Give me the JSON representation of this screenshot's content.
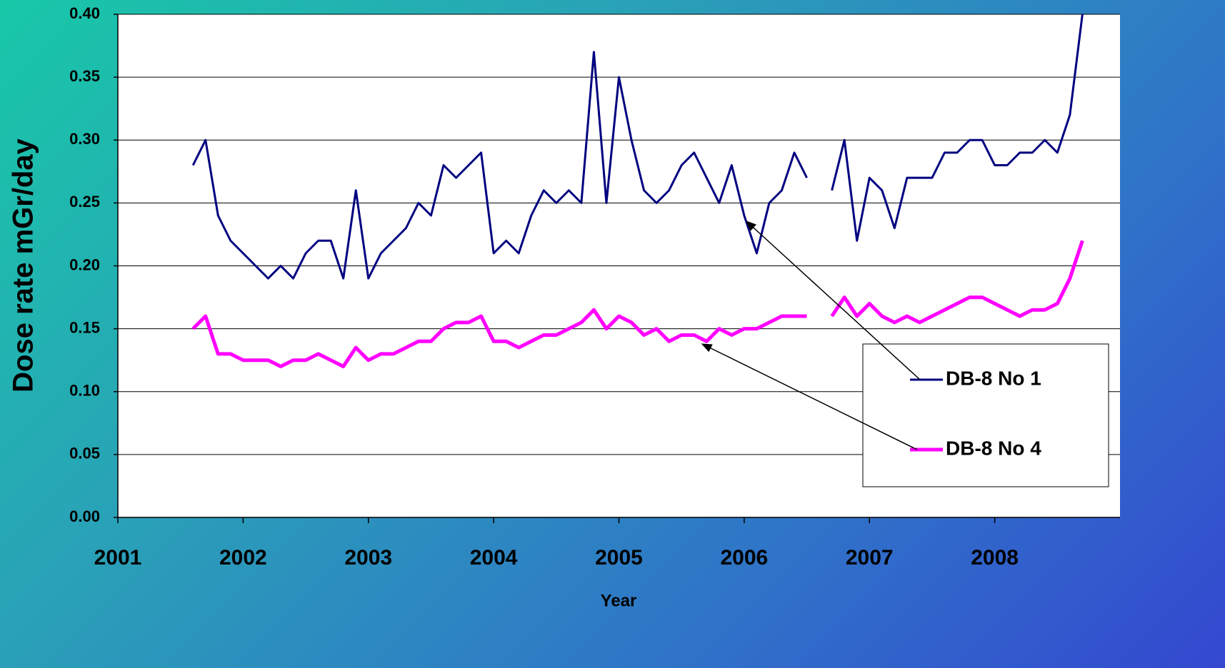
{
  "chart_data": {
    "type": "line",
    "y_label": "Dose rate mGr/day",
    "x_label": "Year",
    "x": [
      2001.6,
      2001.7,
      2001.8,
      2001.9,
      2002.0,
      2002.1,
      2002.2,
      2002.3,
      2002.4,
      2002.5,
      2002.6,
      2002.7,
      2002.8,
      2002.9,
      2003.0,
      2003.1,
      2003.2,
      2003.3,
      2003.4,
      2003.5,
      2003.6,
      2003.7,
      2003.8,
      2003.9,
      2004.0,
      2004.1,
      2004.2,
      2004.3,
      2004.4,
      2004.5,
      2004.6,
      2004.7,
      2004.8,
      2004.9,
      2005.0,
      2005.1,
      2005.2,
      2005.3,
      2005.4,
      2005.5,
      2005.6,
      2005.7,
      2005.8,
      2005.9,
      2006.0,
      2006.1,
      2006.2,
      2006.3,
      2006.4,
      2006.5,
      2006.6,
      2006.7,
      2006.8,
      2006.9,
      2007.0,
      2007.1,
      2007.2,
      2007.3,
      2007.4,
      2007.5,
      2007.6,
      2007.7,
      2007.8,
      2007.9,
      2008.0,
      2008.1,
      2008.2,
      2008.3,
      2008.4,
      2008.5,
      2008.6,
      2008.7
    ],
    "series": [
      {
        "name": "DB-8 No 1",
        "color": "#000080",
        "values": [
          0.28,
          0.3,
          0.24,
          0.22,
          0.21,
          0.2,
          0.19,
          0.2,
          0.19,
          0.21,
          0.22,
          0.22,
          0.19,
          0.26,
          0.19,
          0.21,
          0.22,
          0.23,
          0.25,
          0.24,
          0.28,
          0.27,
          0.28,
          0.29,
          0.21,
          0.22,
          0.21,
          0.24,
          0.26,
          0.25,
          0.26,
          0.25,
          0.37,
          0.25,
          0.35,
          0.3,
          0.26,
          0.25,
          0.26,
          0.28,
          0.29,
          0.27,
          0.25,
          0.28,
          0.24,
          0.21,
          0.25,
          0.26,
          0.29,
          0.27,
          null,
          0.26,
          0.3,
          0.22,
          0.27,
          0.26,
          0.23,
          0.27,
          0.27,
          0.27,
          0.29,
          0.29,
          0.3,
          0.3,
          0.28,
          0.28,
          0.29,
          0.29,
          0.3,
          0.29,
          0.32,
          0.4
        ]
      },
      {
        "name": "DB-8 No 4",
        "color": "#ff00ff",
        "values": [
          0.15,
          0.16,
          0.13,
          0.13,
          0.125,
          0.125,
          0.125,
          0.12,
          0.125,
          0.125,
          0.13,
          0.125,
          0.12,
          0.135,
          0.125,
          0.13,
          0.13,
          0.135,
          0.14,
          0.14,
          0.15,
          0.155,
          0.155,
          0.16,
          0.14,
          0.14,
          0.135,
          0.14,
          0.145,
          0.145,
          0.15,
          0.155,
          0.165,
          0.15,
          0.16,
          0.155,
          0.145,
          0.15,
          0.14,
          0.145,
          0.145,
          0.14,
          0.15,
          0.145,
          0.15,
          0.15,
          0.155,
          0.16,
          0.16,
          0.16,
          null,
          0.16,
          0.175,
          0.16,
          0.17,
          0.16,
          0.155,
          0.16,
          0.155,
          0.16,
          0.165,
          0.17,
          0.175,
          0.175,
          0.17,
          0.165,
          0.16,
          0.165,
          0.165,
          0.17,
          0.19,
          0.22
        ]
      }
    ],
    "xlim": [
      2001,
      2009
    ],
    "xticks": [
      2001,
      2002,
      2003,
      2004,
      2005,
      2006,
      2007,
      2008
    ],
    "ylim": [
      0,
      0.4
    ],
    "yticks": [
      {
        "value": 0,
        "label": "0.00"
      },
      0.05,
      {
        "value": 0.1,
        "label": "0.10"
      },
      0.15,
      {
        "value": 0.2,
        "label": "0.20"
      },
      0.25,
      {
        "value": 0.3,
        "label": "0.30"
      },
      0.35,
      {
        "value": 0.4,
        "label": "0.40"
      }
    ],
    "grid": true,
    "legend": "lower right"
  }
}
